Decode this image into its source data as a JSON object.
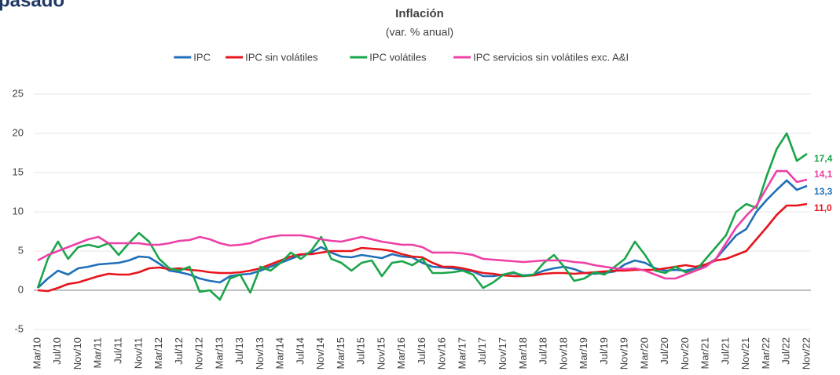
{
  "heading": "pasado",
  "chart_data": {
    "type": "line",
    "title": "Inflación",
    "subtitle": "(var. % anual)",
    "categories": [
      "Mar/10",
      null,
      "Jul/10",
      null,
      "Nov/10",
      null,
      "Mar/11",
      null,
      "Jul/11",
      null,
      "Nov/11",
      null,
      "Mar/12",
      null,
      "Jul/12",
      null,
      "Nov/12",
      null,
      "Mar/13",
      null,
      "Jul/13",
      null,
      "Nov/13",
      null,
      "Mar/14",
      null,
      "Jul/14",
      null,
      "Nov/14",
      null,
      "Mar/15",
      null,
      "Jul/15",
      null,
      "Nov/15",
      null,
      "Mar/16",
      null,
      "Jul/16",
      null,
      "Nov/16",
      null,
      "Mar/17",
      null,
      "Jul/17",
      null,
      "Nov/17",
      null,
      "Mar/18",
      null,
      "Jul/18",
      null,
      "Nov/18",
      null,
      "Mar/19",
      null,
      "Jul/19",
      null,
      "Nov/19",
      null,
      "Mar/20",
      null,
      "Jul/20",
      null,
      "Nov/20",
      null,
      "Mar/21",
      null,
      "Jul/21",
      null,
      "Nov/21",
      null,
      "Mar/22",
      null,
      "Jul/22",
      null,
      "Nov/22"
    ],
    "series": [
      {
        "name": "IPC",
        "color": "#1f6fb8",
        "values": [
          0.3,
          1.5,
          2.5,
          2.0,
          2.8,
          3.0,
          3.3,
          3.4,
          3.5,
          3.8,
          4.3,
          4.2,
          3.4,
          2.5,
          2.3,
          2.0,
          1.5,
          1.2,
          1.0,
          1.8,
          2.0,
          2.1,
          2.5,
          3.0,
          3.5,
          4.0,
          4.5,
          4.8,
          5.5,
          4.8,
          4.3,
          4.2,
          4.5,
          4.3,
          4.1,
          4.6,
          4.3,
          4.2,
          3.5,
          3.0,
          2.9,
          2.8,
          2.6,
          2.4,
          1.8,
          1.8,
          2.0,
          2.2,
          1.9,
          2.0,
          2.5,
          2.8,
          3.0,
          2.7,
          2.2,
          2.1,
          2.2,
          2.4,
          3.3,
          3.8,
          3.5,
          2.8,
          2.5,
          2.6,
          2.5,
          2.8,
          3.2,
          4.0,
          5.5,
          7.0,
          7.8,
          10.0,
          11.5,
          12.8,
          14.0,
          12.8,
          13.3
        ],
        "value_labels": [
          null,
          null,
          null,
          null,
          null,
          null,
          null,
          null,
          null,
          null,
          null,
          null,
          null,
          null,
          null,
          null,
          null,
          null,
          null,
          null,
          null,
          null,
          null,
          null,
          null,
          null,
          null,
          null,
          null,
          null,
          null,
          null,
          null,
          null,
          null,
          null,
          null,
          null,
          null,
          null,
          null,
          null,
          null,
          null,
          null,
          null,
          null,
          null,
          null,
          null,
          null,
          null,
          null,
          null,
          null,
          null,
          null,
          null,
          null,
          null,
          null,
          null,
          null,
          null,
          null,
          null,
          null,
          null,
          null,
          null,
          null,
          null,
          null,
          null,
          null,
          null,
          "13,3"
        ]
      },
      {
        "name": "IPC sin volátiles",
        "color": "#e8141b",
        "values": [
          0.0,
          -0.1,
          0.3,
          0.8,
          1.0,
          1.4,
          1.8,
          2.1,
          2.0,
          2.0,
          2.3,
          2.8,
          2.9,
          2.7,
          2.8,
          2.6,
          2.5,
          2.3,
          2.2,
          2.2,
          2.3,
          2.5,
          2.8,
          3.3,
          3.8,
          4.3,
          4.6,
          4.6,
          4.8,
          5.0,
          5.0,
          5.0,
          5.4,
          5.3,
          5.2,
          5.0,
          4.6,
          4.3,
          4.2,
          3.5,
          3.0,
          3.0,
          2.8,
          2.5,
          2.2,
          2.1,
          1.9,
          1.8,
          1.8,
          1.9,
          2.1,
          2.2,
          2.2,
          2.1,
          2.2,
          2.3,
          2.4,
          2.5,
          2.5,
          2.6,
          2.6,
          2.6,
          2.8,
          3.0,
          3.2,
          3.0,
          3.3,
          3.8,
          4.0,
          4.5,
          5.0,
          6.5,
          8.0,
          9.6,
          10.8,
          10.8,
          11.0
        ],
        "value_labels": [
          null,
          null,
          null,
          null,
          null,
          null,
          null,
          null,
          null,
          null,
          null,
          null,
          null,
          null,
          null,
          null,
          null,
          null,
          null,
          null,
          null,
          null,
          null,
          null,
          null,
          null,
          null,
          null,
          null,
          null,
          null,
          null,
          null,
          null,
          null,
          null,
          null,
          null,
          null,
          null,
          null,
          null,
          null,
          null,
          null,
          null,
          null,
          null,
          null,
          null,
          null,
          null,
          null,
          null,
          null,
          null,
          null,
          null,
          null,
          null,
          null,
          null,
          null,
          null,
          null,
          null,
          null,
          null,
          null,
          null,
          null,
          null,
          null,
          null,
          null,
          null,
          "11,0"
        ]
      },
      {
        "name": "IPC volátiles",
        "color": "#1aa54a",
        "values": [
          0.3,
          4.0,
          6.2,
          4.0,
          5.5,
          5.8,
          5.5,
          6.0,
          4.5,
          6.0,
          7.3,
          6.2,
          4.0,
          2.8,
          2.5,
          3.0,
          -0.2,
          0.0,
          -1.2,
          1.5,
          2.0,
          -0.3,
          3.0,
          2.5,
          3.5,
          4.8,
          4.0,
          5.0,
          6.8,
          4.0,
          3.5,
          2.5,
          3.5,
          3.8,
          1.8,
          3.5,
          3.7,
          3.2,
          4.0,
          2.2,
          2.2,
          2.3,
          2.5,
          2.0,
          0.3,
          1.0,
          2.0,
          2.3,
          1.8,
          2.0,
          3.5,
          4.5,
          3.0,
          1.2,
          1.5,
          2.3,
          2.0,
          3.0,
          4.0,
          6.2,
          4.5,
          2.5,
          2.2,
          3.0,
          2.3,
          2.5,
          4.0,
          5.5,
          7.0,
          10.0,
          11.0,
          10.5,
          14.5,
          18.0,
          20.0,
          16.5,
          17.4
        ],
        "value_labels": [
          null,
          null,
          null,
          null,
          null,
          null,
          null,
          null,
          null,
          null,
          null,
          null,
          null,
          null,
          null,
          null,
          null,
          null,
          null,
          null,
          null,
          null,
          null,
          null,
          null,
          null,
          null,
          null,
          null,
          null,
          null,
          null,
          null,
          null,
          null,
          null,
          null,
          null,
          null,
          null,
          null,
          null,
          null,
          null,
          null,
          null,
          null,
          null,
          null,
          null,
          null,
          null,
          null,
          null,
          null,
          null,
          null,
          null,
          null,
          null,
          null,
          null,
          null,
          null,
          null,
          null,
          null,
          null,
          null,
          null,
          null,
          null,
          null,
          null,
          null,
          null,
          "17,4"
        ]
      },
      {
        "name": "IPC servicios sin volátiles exc. A&I",
        "color": "#ee3fa6",
        "values": [
          3.8,
          4.5,
          5.0,
          5.5,
          6.0,
          6.5,
          6.8,
          6.0,
          6.0,
          6.0,
          6.0,
          5.8,
          5.8,
          6.0,
          6.3,
          6.4,
          6.8,
          6.5,
          6.0,
          5.7,
          5.8,
          6.0,
          6.5,
          6.8,
          7.0,
          7.0,
          7.0,
          6.8,
          6.5,
          6.3,
          6.2,
          6.5,
          6.8,
          6.5,
          6.2,
          6.0,
          5.8,
          5.8,
          5.5,
          4.8,
          4.8,
          4.8,
          4.7,
          4.5,
          4.0,
          3.9,
          3.8,
          3.7,
          3.6,
          3.7,
          3.8,
          3.8,
          3.8,
          3.6,
          3.5,
          3.2,
          3.0,
          2.8,
          2.7,
          2.8,
          2.5,
          2.0,
          1.5,
          1.5,
          2.0,
          2.5,
          3.0,
          4.0,
          6.0,
          8.0,
          9.5,
          10.8,
          13.0,
          15.2,
          15.2,
          13.8,
          14.1
        ],
        "value_labels": [
          null,
          null,
          null,
          null,
          null,
          null,
          null,
          null,
          null,
          null,
          null,
          null,
          null,
          null,
          null,
          null,
          null,
          null,
          null,
          null,
          null,
          null,
          null,
          null,
          null,
          null,
          null,
          null,
          null,
          null,
          null,
          null,
          null,
          null,
          null,
          null,
          null,
          null,
          null,
          null,
          null,
          null,
          null,
          null,
          null,
          null,
          null,
          null,
          null,
          null,
          null,
          null,
          null,
          null,
          null,
          null,
          null,
          null,
          null,
          null,
          null,
          null,
          null,
          null,
          null,
          null,
          null,
          null,
          null,
          null,
          null,
          null,
          null,
          null,
          null,
          null,
          "14,1"
        ]
      }
    ],
    "ylim": [
      -5,
      25
    ],
    "yticks": [
      -5,
      0,
      5,
      10,
      15,
      20,
      25
    ],
    "grid": true,
    "legend": "top"
  }
}
